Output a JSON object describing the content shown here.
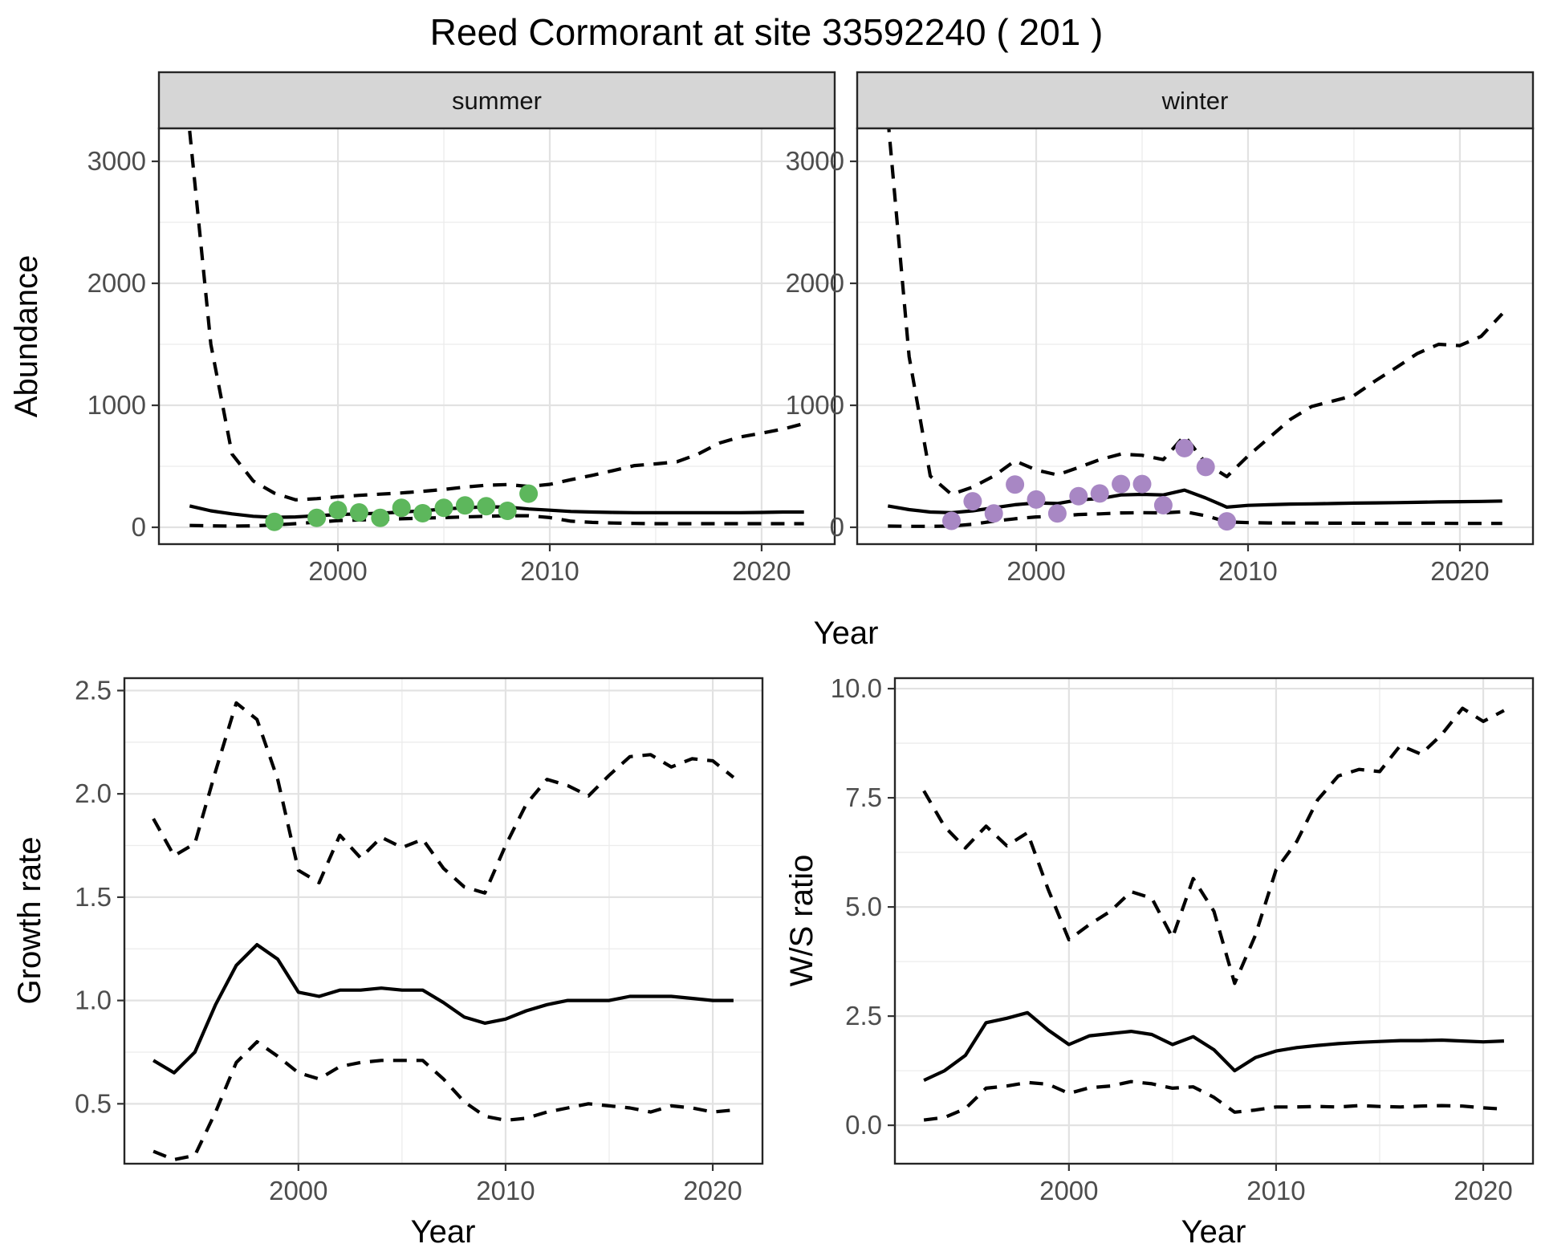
{
  "title": "Reed Cormorant at site 33592240 ( 201 )",
  "colors": {
    "line": "#000000",
    "grid_major": "#e2e2e2",
    "grid_minor": "#ececec",
    "panel_bg": "#ffffff",
    "panel_border": "#262626",
    "strip_bg": "#d6d6d6",
    "tick_mark": "#333333",
    "summer_points": "#5db75c",
    "winter_points": "#a887c4"
  },
  "chart_data": [
    {
      "id": "abundance_summer",
      "type": "line",
      "facet_label": "summer",
      "xlabel": "Year",
      "ylabel": "Abundance",
      "legend": "none",
      "grid": "on",
      "xlim": [
        1991.55,
        2023.45
      ],
      "ylim": [
        -138,
        3270
      ],
      "xticks": {
        "values": [
          2000,
          2010,
          2020
        ],
        "labels": [
          "2000",
          "2010",
          "2020"
        ]
      },
      "yticks": {
        "values": [
          0,
          1000,
          2000,
          3000
        ],
        "labels": [
          "0",
          "1000",
          "2000",
          "3000"
        ]
      },
      "x": [
        1993,
        1994,
        1995,
        1996,
        1997,
        1998,
        1999,
        2000,
        2001,
        2002,
        2003,
        2004,
        2005,
        2006,
        2007,
        2008,
        2009,
        2010,
        2011,
        2012,
        2013,
        2014,
        2015,
        2016,
        2017,
        2018,
        2019,
        2020,
        2021,
        2022
      ],
      "series": [
        {
          "name": "median_fit",
          "style": "solid",
          "values": [
            175,
            135,
            110,
            90,
            82,
            85,
            95,
            105,
            110,
            115,
            125,
            135,
            150,
            160,
            168,
            165,
            150,
            140,
            130,
            125,
            122,
            120,
            120,
            120,
            120,
            120,
            120,
            122,
            125,
            125
          ]
        },
        {
          "name": "upper_95ci",
          "style": "dashed",
          "values": [
            3250,
            1500,
            600,
            380,
            280,
            225,
            235,
            250,
            262,
            272,
            282,
            295,
            310,
            330,
            345,
            350,
            335,
            352,
            390,
            426,
            465,
            506,
            520,
            537,
            600,
            690,
            740,
            772,
            805,
            850
          ]
        },
        {
          "name": "lower_95ci",
          "style": "dashed",
          "values": [
            15,
            12,
            10,
            12,
            20,
            30,
            42,
            55,
            60,
            65,
            70,
            75,
            80,
            85,
            90,
            95,
            95,
            80,
            50,
            40,
            35,
            32,
            30,
            30,
            30,
            30,
            30,
            30,
            30,
            30
          ]
        }
      ],
      "points": {
        "name": "observed_counts_summer",
        "color": "#5db75c",
        "x": [
          1997,
          1999,
          2000,
          2001,
          2002,
          2003,
          2004,
          2005,
          2006,
          2007,
          2008,
          2009
        ],
        "y": [
          45,
          77,
          141,
          122,
          77,
          160,
          115,
          160,
          180,
          173,
          135,
          276
        ]
      }
    },
    {
      "id": "abundance_winter",
      "type": "line",
      "facet_label": "winter",
      "xlabel": "Year",
      "ylabel": "Abundance",
      "legend": "none",
      "grid": "on",
      "xlim": [
        1991.55,
        2023.45
      ],
      "ylim": [
        -138,
        3270
      ],
      "xticks": {
        "values": [
          2000,
          2010,
          2020
        ],
        "labels": [
          "2000",
          "2010",
          "2020"
        ]
      },
      "yticks": {
        "values": [
          0,
          1000,
          2000,
          3000
        ],
        "labels": [
          "0",
          "1000",
          "2000",
          "3000"
        ]
      },
      "x": [
        1993,
        1994,
        1995,
        1996,
        1997,
        1998,
        1999,
        2000,
        2001,
        2002,
        2003,
        2004,
        2005,
        2006,
        2007,
        2008,
        2009,
        2010,
        2011,
        2012,
        2013,
        2014,
        2015,
        2016,
        2017,
        2018,
        2019,
        2020,
        2021,
        2022
      ],
      "series": [
        {
          "name": "median_fit",
          "style": "solid",
          "values": [
            175,
            145,
            125,
            120,
            135,
            160,
            185,
            200,
            195,
            225,
            235,
            265,
            270,
            265,
            305,
            240,
            165,
            180,
            185,
            190,
            192,
            195,
            198,
            200,
            202,
            205,
            208,
            210,
            212,
            215
          ]
        },
        {
          "name": "upper_95ci",
          "style": "dashed",
          "values": [
            3350,
            1400,
            420,
            270,
            330,
            420,
            545,
            470,
            430,
            490,
            555,
            600,
            590,
            555,
            750,
            525,
            415,
            585,
            735,
            885,
            990,
            1035,
            1080,
            1200,
            1310,
            1425,
            1500,
            1490,
            1565,
            1750
          ]
        },
        {
          "name": "lower_95ci",
          "style": "dashed",
          "values": [
            10,
            8,
            8,
            10,
            25,
            50,
            70,
            85,
            90,
            105,
            110,
            118,
            120,
            118,
            128,
            95,
            45,
            38,
            36,
            35,
            35,
            34,
            34,
            33,
            33,
            33,
            33,
            32,
            32,
            32
          ]
        }
      ],
      "points": {
        "name": "observed_counts_winter",
        "color": "#a887c4",
        "x": [
          1996,
          1997,
          1998,
          1999,
          2000,
          2001,
          2002,
          2003,
          2004,
          2005,
          2006,
          2007,
          2008,
          2009
        ],
        "y": [
          53,
          213,
          113,
          351,
          228,
          113,
          255,
          277,
          355,
          355,
          181,
          649,
          494,
          49
        ]
      }
    },
    {
      "id": "growth_rate",
      "type": "line",
      "facet_label": "",
      "xlabel": "Year",
      "ylabel": "Growth rate",
      "legend": "none",
      "grid": "on",
      "xlim": [
        1991.6,
        2022.4
      ],
      "ylim": [
        0.21,
        2.56
      ],
      "xticks": {
        "values": [
          2000,
          2010,
          2020
        ],
        "labels": [
          "2000",
          "2010",
          "2020"
        ]
      },
      "yticks": {
        "values": [
          0.5,
          1.0,
          1.5,
          2.0,
          2.5
        ],
        "labels": [
          "0.5",
          "1.0",
          "1.5",
          "2.0",
          "2.5"
        ]
      },
      "x": [
        1993,
        1994,
        1995,
        1996,
        1997,
        1998,
        1999,
        2000,
        2001,
        2002,
        2003,
        2004,
        2005,
        2006,
        2007,
        2008,
        2009,
        2010,
        2011,
        2012,
        2013,
        2014,
        2015,
        2016,
        2017,
        2018,
        2019,
        2020,
        2021
      ],
      "series": [
        {
          "name": "median_growth",
          "style": "solid",
          "values": [
            0.71,
            0.65,
            0.75,
            0.98,
            1.17,
            1.27,
            1.2,
            1.04,
            1.02,
            1.05,
            1.05,
            1.06,
            1.05,
            1.05,
            0.99,
            0.92,
            0.89,
            0.91,
            0.95,
            0.98,
            1.0,
            1.0,
            1.0,
            1.02,
            1.02,
            1.02,
            1.01,
            1.0,
            1.0
          ]
        },
        {
          "name": "upper_95ci",
          "style": "dashed",
          "values": [
            1.88,
            1.7,
            1.76,
            2.11,
            2.44,
            2.36,
            2.07,
            1.63,
            1.57,
            1.8,
            1.69,
            1.79,
            1.74,
            1.78,
            1.64,
            1.55,
            1.52,
            1.75,
            1.95,
            2.07,
            2.04,
            1.99,
            2.09,
            2.18,
            2.19,
            2.13,
            2.17,
            2.16,
            2.08
          ]
        },
        {
          "name": "lower_95ci",
          "style": "dashed",
          "values": [
            0.27,
            0.23,
            0.25,
            0.46,
            0.7,
            0.8,
            0.73,
            0.65,
            0.62,
            0.68,
            0.7,
            0.71,
            0.71,
            0.71,
            0.62,
            0.51,
            0.44,
            0.42,
            0.43,
            0.46,
            0.48,
            0.5,
            0.49,
            0.48,
            0.46,
            0.49,
            0.48,
            0.46,
            0.47
          ]
        }
      ],
      "points": null
    },
    {
      "id": "ws_ratio",
      "type": "line",
      "facet_label": "",
      "xlabel": "Year",
      "ylabel": "W/S ratio",
      "legend": "none",
      "grid": "on",
      "xlim": [
        1991.6,
        2022.4
      ],
      "ylim": [
        -0.88,
        10.24
      ],
      "xticks": {
        "values": [
          2000,
          2010,
          2020
        ],
        "labels": [
          "2000",
          "2010",
          "2020"
        ]
      },
      "yticks": {
        "values": [
          0.0,
          2.5,
          5.0,
          7.5,
          10.0
        ],
        "labels": [
          "0.0",
          "2.5",
          "5.0",
          "7.5",
          "10.0"
        ]
      },
      "x": [
        1993,
        1994,
        1995,
        1996,
        1997,
        1998,
        1999,
        2000,
        2001,
        2002,
        2003,
        2004,
        2005,
        2006,
        2007,
        2008,
        2009,
        2010,
        2011,
        2012,
        2013,
        2014,
        2015,
        2016,
        2017,
        2018,
        2019,
        2020,
        2021
      ],
      "series": [
        {
          "name": "median_ratio",
          "style": "solid",
          "values": [
            1.03,
            1.25,
            1.6,
            2.35,
            2.45,
            2.58,
            2.18,
            1.85,
            2.05,
            2.1,
            2.15,
            2.08,
            1.85,
            2.03,
            1.73,
            1.25,
            1.55,
            1.7,
            1.78,
            1.83,
            1.87,
            1.9,
            1.92,
            1.94,
            1.94,
            1.95,
            1.93,
            1.91,
            1.93
          ]
        },
        {
          "name": "upper_95ci",
          "style": "dashed",
          "values": [
            7.66,
            6.84,
            6.35,
            6.85,
            6.4,
            6.7,
            5.4,
            4.25,
            4.6,
            4.9,
            5.35,
            5.2,
            4.3,
            5.65,
            4.9,
            3.25,
            4.35,
            5.85,
            6.5,
            7.45,
            8.0,
            8.15,
            8.1,
            8.7,
            8.5,
            8.95,
            9.55,
            9.25,
            9.5
          ]
        },
        {
          "name": "lower_95ci",
          "style": "dashed",
          "values": [
            0.12,
            0.18,
            0.38,
            0.85,
            0.9,
            0.98,
            0.94,
            0.73,
            0.86,
            0.9,
            1.0,
            0.95,
            0.85,
            0.88,
            0.64,
            0.3,
            0.35,
            0.42,
            0.42,
            0.43,
            0.42,
            0.45,
            0.43,
            0.42,
            0.44,
            0.45,
            0.44,
            0.4,
            0.37
          ]
        }
      ],
      "points": null
    }
  ]
}
